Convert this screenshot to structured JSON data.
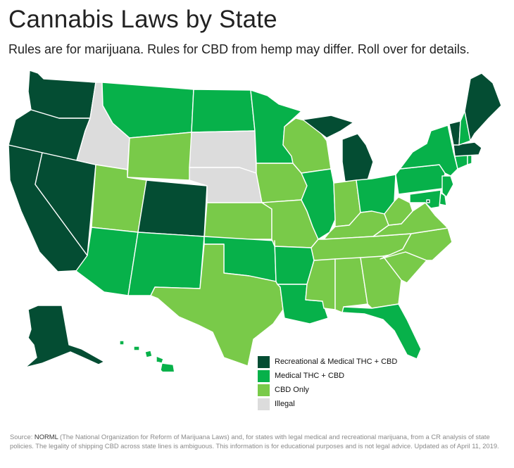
{
  "title": "Cannabis Laws by State",
  "subtitle": "Rules are for marijuana. Rules for CBD from hemp may differ. Roll over for details.",
  "colors": {
    "recreational": "#044d33",
    "medical": "#07b14a",
    "cbd": "#79ca49",
    "illegal": "#dcdcdc"
  },
  "legend": [
    {
      "key": "recreational",
      "label": "Recreational & Medical THC + CBD"
    },
    {
      "key": "medical",
      "label": "Medical THC + CBD"
    },
    {
      "key": "cbd",
      "label": "CBD Only"
    },
    {
      "key": "illegal",
      "label": "Illegal"
    }
  ],
  "source": {
    "prefix": "Source: ",
    "org": "NORML",
    "text": " (The National Organization for Reform of Marijuana Laws) and, for states with legal medical and recreational marijuana, from a CR analysis of state policies. The legality of shipping CBD across state lines is ambiguous. This information is for educational purposes and is not legal advice. Updated as of April 11, 2019."
  },
  "states": {
    "AL": "cbd",
    "AK": "recreational",
    "AZ": "medical",
    "AR": "medical",
    "CA": "recreational",
    "CO": "recreational",
    "CT": "medical",
    "DE": "medical",
    "FL": "medical",
    "GA": "cbd",
    "HI": "medical",
    "ID": "illegal",
    "IL": "medical",
    "IN": "cbd",
    "IA": "cbd",
    "KS": "cbd",
    "KY": "cbd",
    "LA": "medical",
    "ME": "recreational",
    "MD": "medical",
    "MA": "recreational",
    "MI": "recreational",
    "MN": "medical",
    "MS": "cbd",
    "MO": "cbd",
    "MT": "medical",
    "NE": "illegal",
    "NV": "recreational",
    "NH": "medical",
    "NJ": "medical",
    "NM": "medical",
    "NY": "medical",
    "NC": "cbd",
    "ND": "medical",
    "OH": "medical",
    "OK": "medical",
    "OR": "recreational",
    "PA": "medical",
    "RI": "medical",
    "SC": "cbd",
    "SD": "illegal",
    "TN": "cbd",
    "TX": "cbd",
    "UT": "cbd",
    "VT": "recreational",
    "VA": "cbd",
    "WA": "recreational",
    "WV": "cbd",
    "WI": "cbd",
    "WY": "cbd",
    "DC": "recreational"
  }
}
